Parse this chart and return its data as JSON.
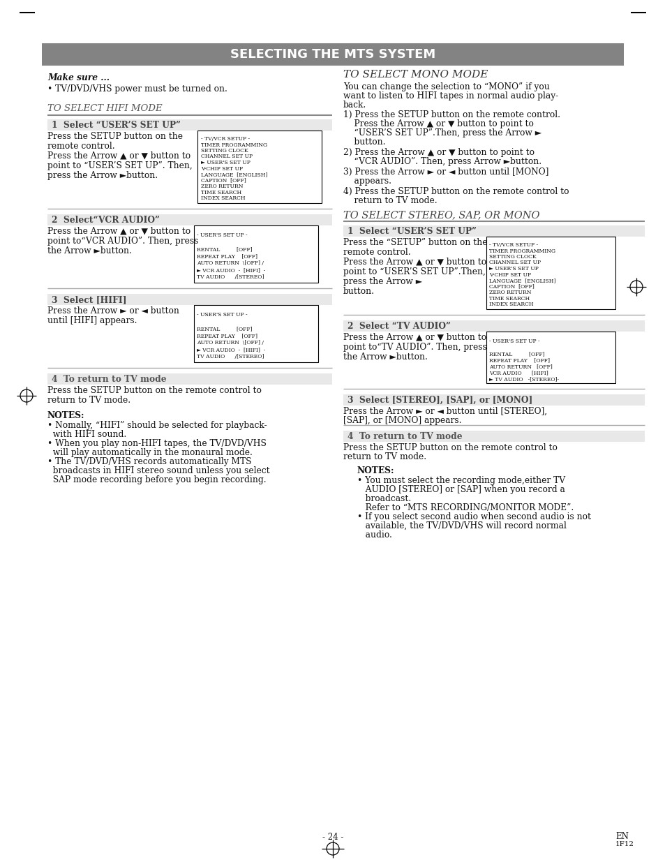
{
  "title": "SELECTING THE MTS SYSTEM",
  "page_bg": "#ffffff",
  "page_number": "- 24 -",
  "page_en": "EN",
  "page_code": "1F12",
  "box1_lines": [
    "- TV/VCR SETUP -",
    "TIMER PROGRAMMING",
    "SETTING CLOCK",
    "CHANNEL SET UP",
    "► USER'S SET UP",
    "V-CHIP SET UP",
    "LANGUAGE  [ENGLISH]",
    "CAPTION  [OFF]",
    "ZERO RETURN",
    "TIME SEARCH",
    "INDEX SEARCH"
  ],
  "box2_lines": [
    "- USER'S SET UP -",
    "",
    "RENTAL          [OFF]",
    "REPEAT PLAY    [OFF]",
    "AUTO RETURN  \\[OFF] /",
    "► VCR AUDIO  -  [HIFI]  -",
    "TV AUDIO      /[STEREO]"
  ],
  "box3_lines": [
    "- USER'S SET UP -",
    "",
    "RENTAL          [OFF]",
    "REPEAT PLAY    [OFF]",
    "AUTO RETURN  \\[OFF] /",
    "► VCR AUDIO  -  [HIFI]  -",
    "TV AUDIO      /[STEREO]"
  ],
  "box4_lines": [
    "- TV/VCR SETUP -",
    "TIMER PROGRAMMING",
    "SETTING CLOCK",
    "CHANNEL SET UP",
    "► USER'S SET UP",
    "V-CHIP SET UP",
    "LANGUAGE  [ENGLISH]",
    "CAPTION  [OFF]",
    "ZERO RETURN",
    "TIME SEARCH",
    "INDEX SEARCH"
  ],
  "box5_lines": [
    "- USER'S SET UP -",
    "",
    "RENTAL          [OFF]",
    "REPEAT PLAY    [OFF]",
    "AUTO RETURN   [OFF]",
    "VCR AUDIO      [HIFI]",
    "► TV AUDIO   -[STEREO]-"
  ]
}
